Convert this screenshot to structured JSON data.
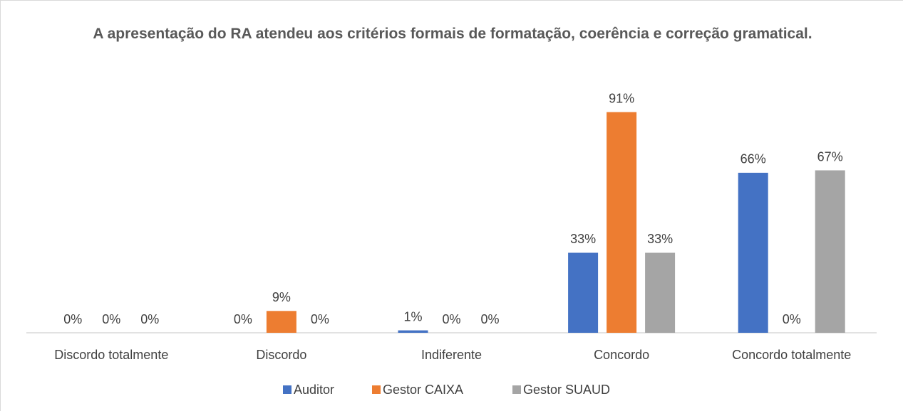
{
  "chart_data": {
    "type": "bar",
    "title": "A apresentação do RA atendeu aos critérios formais de formatação, coerência e correção gramatical.",
    "categories": [
      "Discordo totalmente",
      "Discordo",
      "Indiferente",
      "Concordo",
      "Concordo totalmente"
    ],
    "series": [
      {
        "name": "Auditor",
        "color": "#4472c4",
        "values": [
          0,
          0,
          1,
          33,
          66
        ],
        "value_labels": [
          "0%",
          "0%",
          "1%",
          "33%",
          "66%"
        ]
      },
      {
        "name": "Gestor CAIXA",
        "color": "#ed7d31",
        "values": [
          0,
          9,
          0,
          91,
          0
        ],
        "value_labels": [
          "0%",
          "9%",
          "0%",
          "91%",
          "0%"
        ]
      },
      {
        "name": "Gestor SUAUD",
        "color": "#a5a5a5",
        "values": [
          0,
          0,
          0,
          33,
          67
        ],
        "value_labels": [
          "0%",
          "0%",
          "0%",
          "33%",
          "67%"
        ]
      }
    ],
    "legend": "bottom"
  }
}
